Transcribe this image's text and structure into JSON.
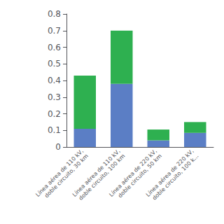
{
  "chart_data": {
    "type": "bar",
    "stacked": true,
    "grid": false,
    "categories": [
      "Línea aérea de 110 kV,\ndoble circuito, 30 km",
      "Línea aérea de 110 kV,\ndoble circuito, 100 km",
      "Línea aérea de 220 kV,\ndoble circuito, 50 km",
      "Línea aérea de 220 kV,\ndoble circuito, 100 k..."
    ],
    "series": [
      {
        "color": "#5b7ec5",
        "values": [
          0.11,
          0.38,
          0.04,
          0.085
        ]
      },
      {
        "color": "#2eb050",
        "values": [
          0.32,
          0.32,
          0.065,
          0.065
        ]
      }
    ],
    "ylim": [
      0,
      0.8
    ],
    "yticks": [
      0,
      0.1,
      0.2,
      0.3,
      0.4,
      0.5,
      0.6,
      0.7,
      0.8
    ]
  }
}
